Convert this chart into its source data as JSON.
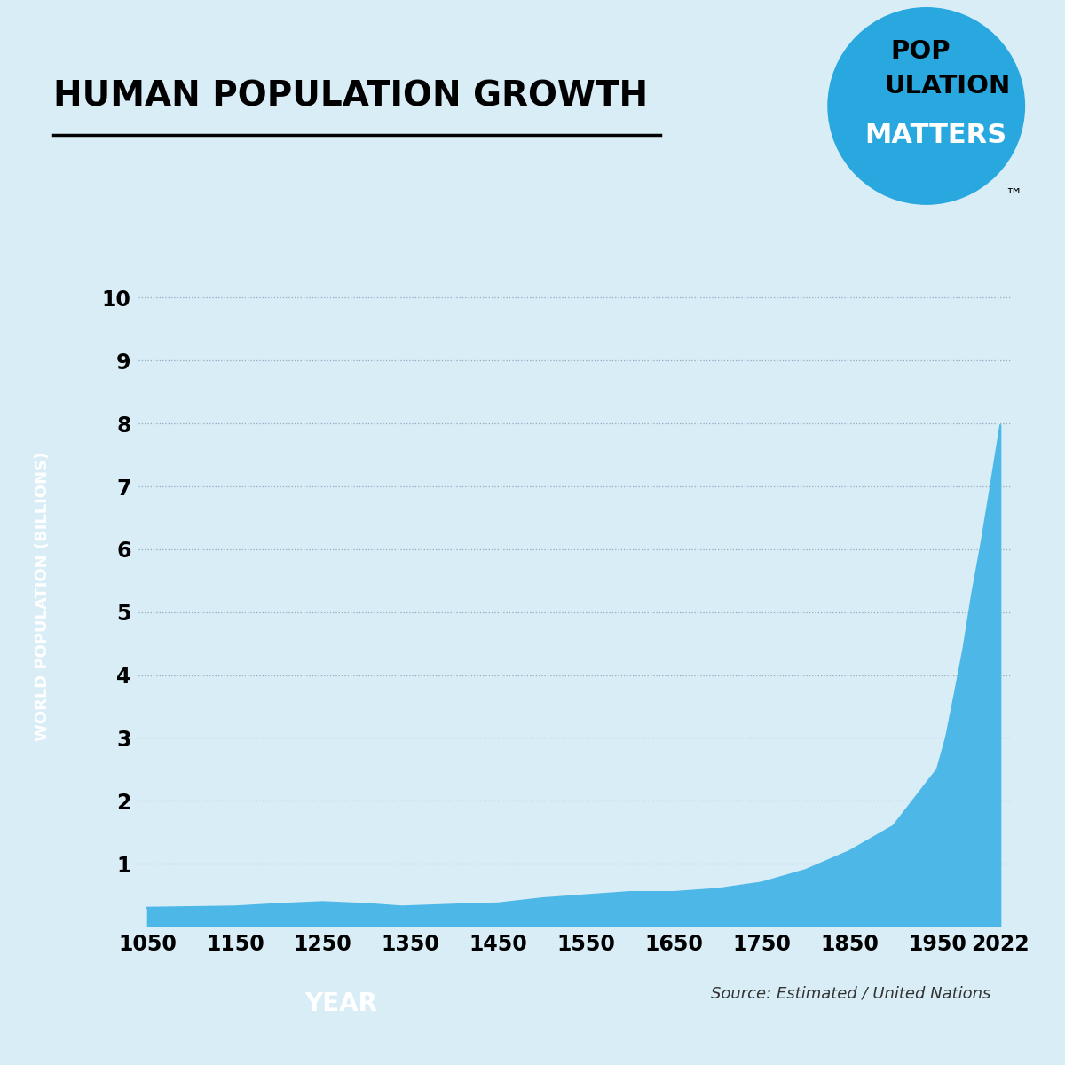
{
  "title": "HUMAN POPULATION GROWTH",
  "background_color": "#d9edf7",
  "fill_color": "#4db8e8",
  "grid_color": "#7a9ab0",
  "ylabel": "WORLD POPULATION (BILLIONS)",
  "xlabel": "YEAR",
  "source_text": "Source: Estimated / United Nations",
  "years": [
    1050,
    1100,
    1150,
    1200,
    1250,
    1300,
    1340,
    1400,
    1450,
    1500,
    1550,
    1600,
    1650,
    1700,
    1750,
    1800,
    1850,
    1900,
    1950,
    1960,
    1970,
    1980,
    1990,
    2000,
    2010,
    2022
  ],
  "population": [
    0.3,
    0.31,
    0.32,
    0.36,
    0.39,
    0.36,
    0.32,
    0.35,
    0.37,
    0.45,
    0.5,
    0.55,
    0.55,
    0.6,
    0.7,
    0.9,
    1.2,
    1.6,
    2.5,
    3.0,
    3.7,
    4.43,
    5.31,
    6.07,
    6.92,
    7.97
  ],
  "xtick_labels": [
    "1050",
    "1150",
    "1250",
    "1350",
    "1450",
    "1550",
    "1650",
    "1750",
    "1850",
    "1950",
    "2022"
  ],
  "xtick_positions": [
    1050,
    1150,
    1250,
    1350,
    1450,
    1550,
    1650,
    1750,
    1850,
    1950,
    2022
  ],
  "ytick_labels": [
    "1",
    "2",
    "3",
    "4",
    "5",
    "6",
    "7",
    "8",
    "9",
    "10"
  ],
  "ytick_values": [
    1,
    2,
    3,
    4,
    5,
    6,
    7,
    8,
    9,
    10
  ],
  "ylim": [
    0,
    10.5
  ],
  "xlim": [
    1040,
    2035
  ],
  "logo_circle_color": "#29a8e0",
  "logo_text1": "POP",
  "logo_text2": "ULATION",
  "logo_text3": "MATTERS"
}
